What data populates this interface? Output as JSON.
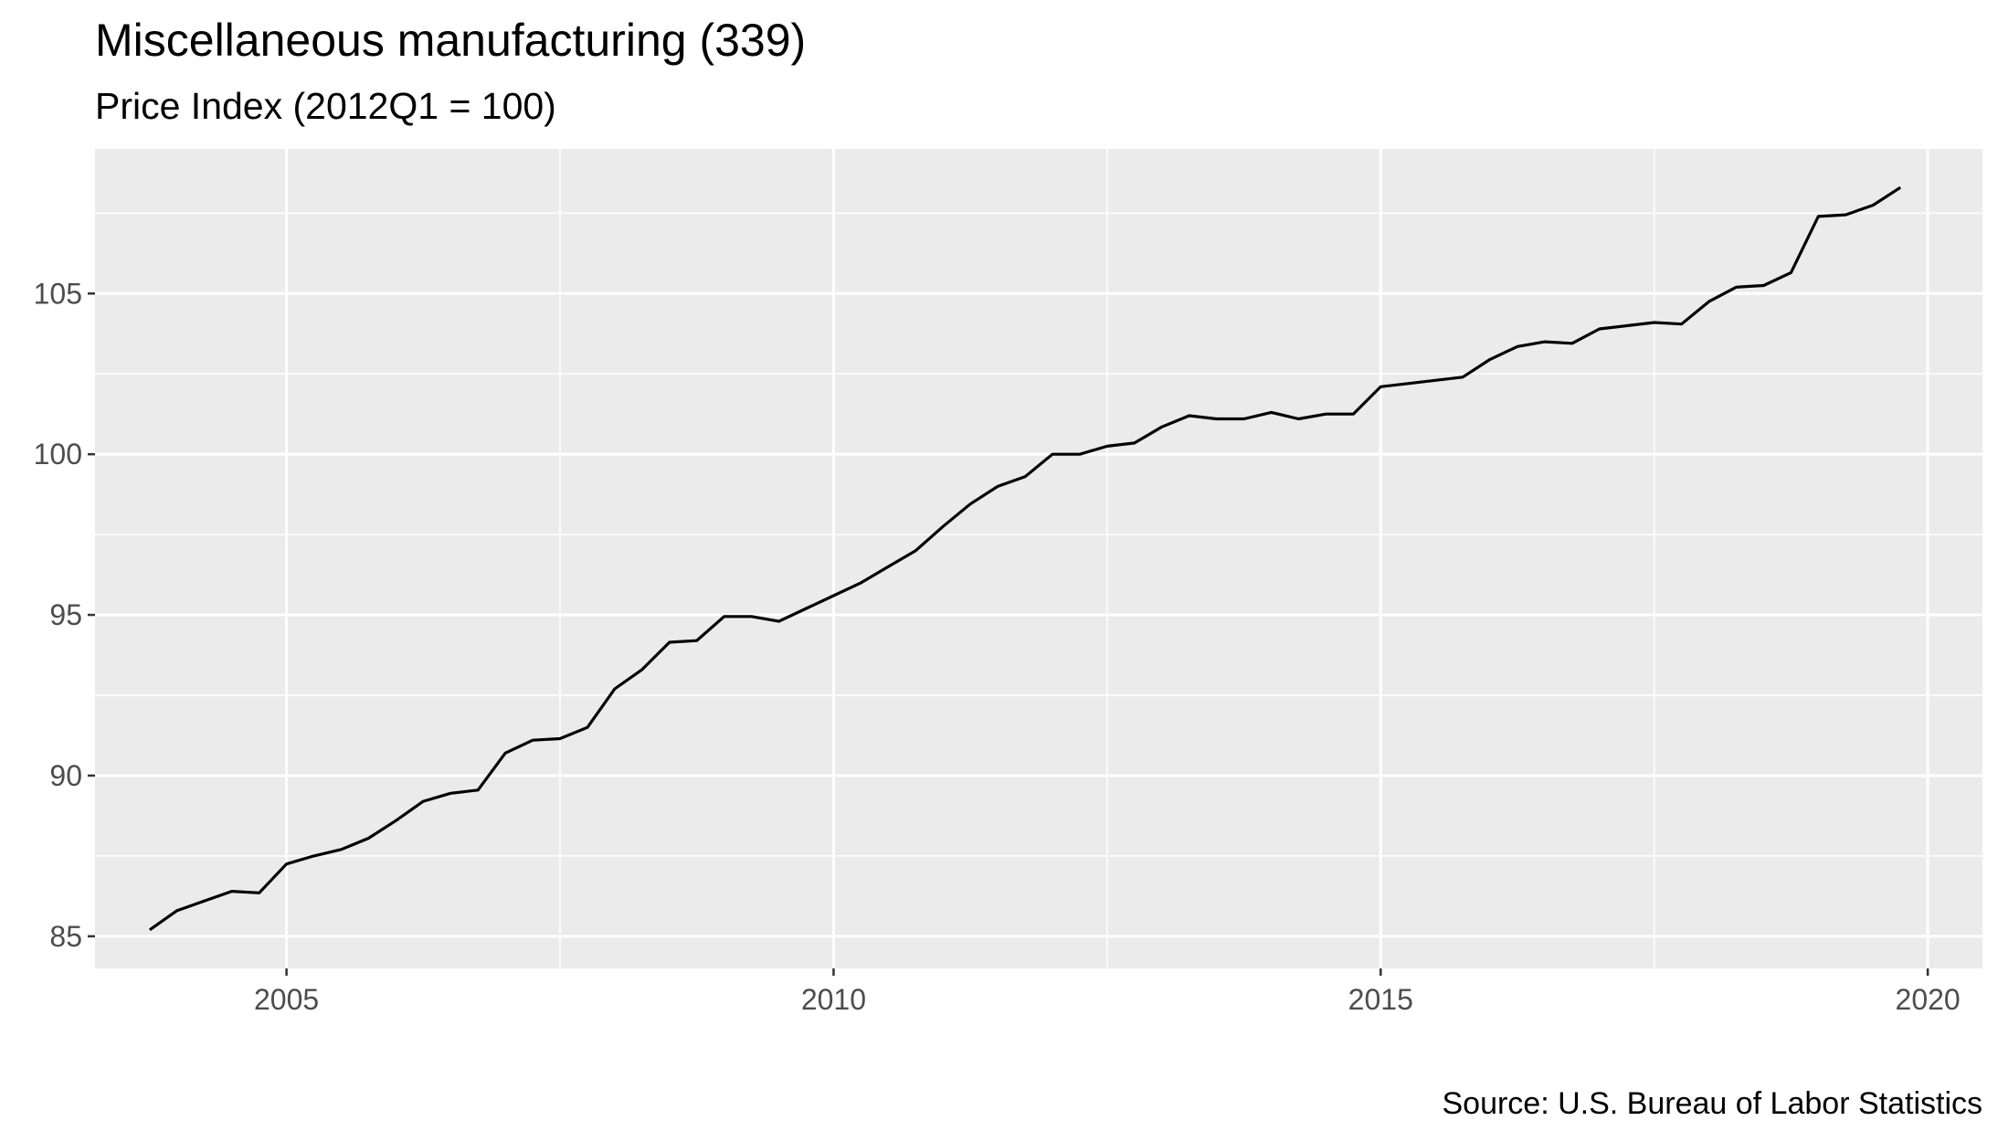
{
  "chart_data": {
    "type": "line",
    "title": "Miscellaneous manufacturing (339)",
    "subtitle": "Price Index (2012Q1 = 100)",
    "caption": "Source: U.S. Bureau of Labor Statistics",
    "xlabel": "",
    "ylabel": "",
    "xlim": [
      2003.25,
      2020.5
    ],
    "ylim": [
      84.0,
      109.5
    ],
    "x_ticks": [
      2005,
      2010,
      2015,
      2020
    ],
    "x_tick_labels": [
      "2005",
      "2010",
      "2015",
      "2020"
    ],
    "y_ticks": [
      85,
      90,
      95,
      100,
      105
    ],
    "y_tick_labels": [
      "85",
      "90",
      "95",
      "100",
      "105"
    ],
    "grid": true,
    "legend": "none",
    "colors": {
      "panel": "#ebebeb",
      "grid": "#ffffff",
      "line": "#000000",
      "tick_text": "#4d4d4d",
      "tick_mark": "#333333"
    },
    "series": [
      {
        "x": [
          2003.75,
          2004.0,
          2004.25,
          2004.5,
          2004.75,
          2005.0,
          2005.25,
          2005.5,
          2005.75,
          2006.0,
          2006.25,
          2006.5,
          2006.75,
          2007.0,
          2007.25,
          2007.5,
          2007.75,
          2008.0,
          2008.25,
          2008.5,
          2008.75,
          2009.0,
          2009.25,
          2009.5,
          2009.75,
          2010.0,
          2010.25,
          2010.5,
          2010.75,
          2011.0,
          2011.25,
          2011.5,
          2011.75,
          2012.0,
          2012.25,
          2012.5,
          2012.75,
          2013.0,
          2013.25,
          2013.5,
          2013.75,
          2014.0,
          2014.25,
          2014.5,
          2014.75,
          2015.0,
          2015.25,
          2015.5,
          2015.75,
          2016.0,
          2016.25,
          2016.5,
          2016.75,
          2017.0,
          2017.25,
          2017.5,
          2017.75,
          2018.0,
          2018.25,
          2018.5,
          2018.75,
          2019.0,
          2019.25,
          2019.5,
          2019.75
        ],
        "values": [
          85.2,
          85.8,
          86.1,
          86.4,
          86.35,
          87.25,
          87.5,
          87.7,
          88.05,
          88.6,
          89.2,
          89.45,
          89.55,
          90.7,
          91.1,
          91.15,
          91.5,
          92.7,
          93.3,
          94.15,
          94.2,
          94.95,
          94.95,
          94.8,
          95.2,
          95.6,
          96.0,
          96.5,
          97.0,
          97.75,
          98.45,
          99.0,
          99.3,
          100.0,
          100.0,
          100.25,
          100.35,
          100.85,
          101.2,
          101.1,
          101.1,
          101.3,
          101.1,
          101.25,
          101.25,
          102.1,
          102.2,
          102.3,
          102.4,
          102.95,
          103.35,
          103.5,
          103.45,
          103.9,
          104.0,
          104.1,
          104.05,
          104.75,
          105.2,
          105.25,
          105.65,
          107.4,
          107.45,
          107.75,
          108.3
        ]
      }
    ]
  }
}
